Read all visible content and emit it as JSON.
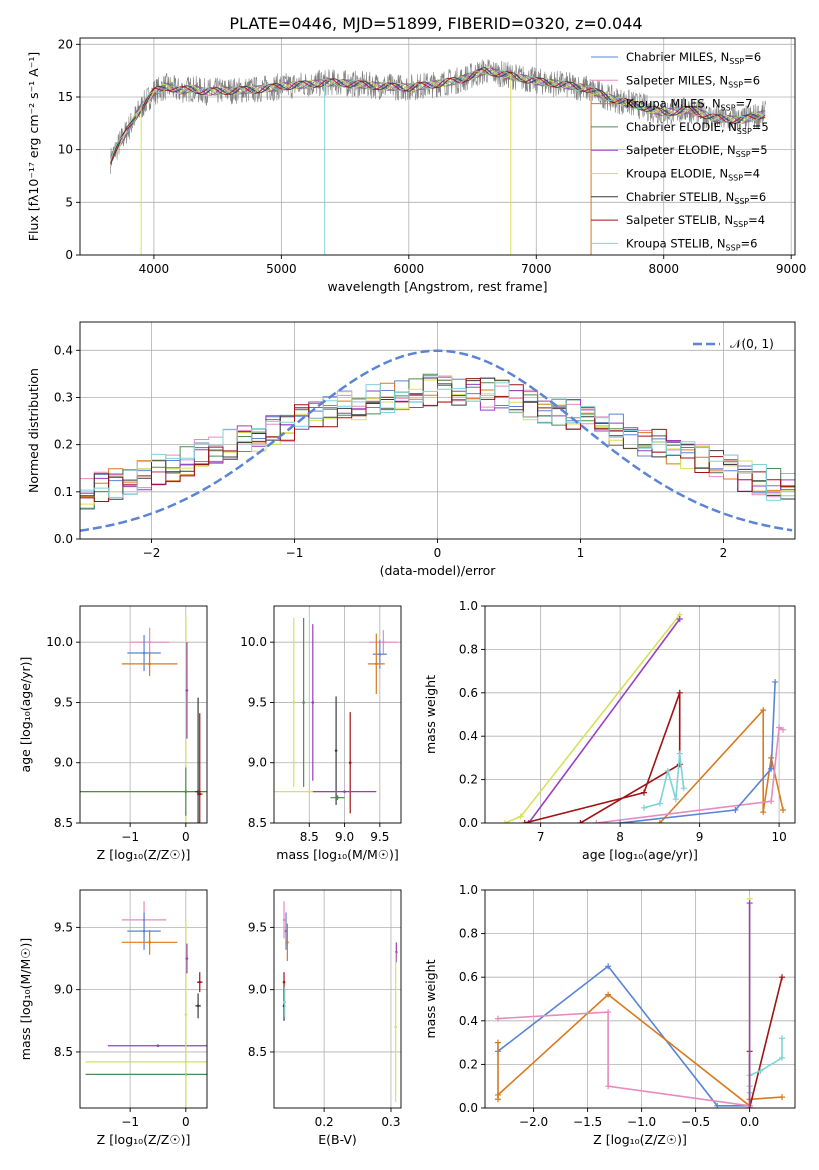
{
  "figure_title": "PLATE=0446, MJD=51899, FIBERID=0320, z=0.044",
  "legend_models": [
    {
      "name": "Chabrier MILES",
      "n": "6",
      "color": "#5b84d6"
    },
    {
      "name": "Salpeter MILES",
      "n": "6",
      "color": "#e78bbf"
    },
    {
      "name": "Kroupa MILES",
      "n": "7",
      "color": "#d97a1e"
    },
    {
      "name": "Chabrier ELODIE",
      "n": "5",
      "color": "#4f8a57"
    },
    {
      "name": "Salpeter ELODIE",
      "n": "5",
      "color": "#9a3dc4"
    },
    {
      "name": "Kroupa ELODIE",
      "n": "4",
      "color": "#d6e25a"
    },
    {
      "name": "Chabrier STELIB",
      "n": "6",
      "color": "#3a3a3a"
    },
    {
      "name": "Salpeter STELIB",
      "n": "4",
      "color": "#a11212"
    },
    {
      "name": "Kroupa STELIB",
      "n": "6",
      "color": "#7fd3d6"
    }
  ],
  "chart_data": [
    {
      "id": "spectrum",
      "type": "line",
      "xlabel": "wavelength [Angstrom, rest frame]",
      "ylabel": "Flux [fλ10⁻¹⁷ erg cm⁻² s⁻¹ A⁻¹]",
      "xlim": [
        3420,
        9030
      ],
      "ylim": [
        0,
        20.6
      ],
      "xticks": [
        4000,
        5000,
        6000,
        7000,
        8000,
        9000
      ],
      "yticks": [
        0,
        5,
        10,
        15,
        20
      ],
      "data_color": "#808080",
      "series": [
        {
          "x": [
            3660,
            3700,
            3800,
            3900,
            4000,
            4100,
            4200,
            4300,
            4400,
            4600,
            4800,
            5000,
            5200,
            5400,
            5600,
            5800,
            6000,
            6200,
            6400,
            6600,
            6800,
            7000,
            7200,
            7400,
            7600,
            7800,
            8000,
            8200,
            8400,
            8600,
            8800
          ],
          "y": [
            9.0,
            10.0,
            12.0,
            14.0,
            15.5,
            16.0,
            15.6,
            15.8,
            15.5,
            15.6,
            15.7,
            16.0,
            16.2,
            16.4,
            16.2,
            16.0,
            15.9,
            16.2,
            16.6,
            17.5,
            17.0,
            16.5,
            16.2,
            15.8,
            14.8,
            14.2,
            13.5,
            13.8,
            13.0,
            12.8,
            13.4
          ]
        }
      ]
    },
    {
      "id": "residuals",
      "type": "histogram",
      "xlabel": "(data-model)/error",
      "ylabel": "Normed distribution",
      "xlim": [
        -2.5,
        2.5
      ],
      "ylim": [
        0,
        0.46
      ],
      "xticks": [
        -2,
        -1,
        0,
        1,
        2
      ],
      "yticks": [
        0.0,
        0.1,
        0.2,
        0.3,
        0.4
      ],
      "legend": [
        {
          "name": "𝒩(0, 1)",
          "color": "#5b84d6"
        }
      ],
      "gaussian": {
        "mu": 0,
        "sigma": 1
      }
    },
    {
      "id": "age-vs-Z",
      "type": "scatter",
      "xlabel": "Z [log₁₀(Z/Z☉)]",
      "ylabel": "age  [log₁₀(age/yr)]",
      "xlim": [
        -1.9,
        0.38
      ],
      "ylim": [
        8.5,
        10.3
      ],
      "xticks": [
        -1,
        0
      ],
      "yticks": [
        8.5,
        9.0,
        9.5,
        10.0
      ],
      "points": [
        {
          "x": -0.65,
          "y": 10.0,
          "xerr": 0.35,
          "yerr": 0.12,
          "color": "#e78bbf"
        },
        {
          "x": -0.75,
          "y": 9.91,
          "xerr": 0.3,
          "yerr": 0.15,
          "color": "#5b84d6"
        },
        {
          "x": -0.65,
          "y": 9.82,
          "xerr": 0.5,
          "yerr": 0.1,
          "color": "#d97a1e"
        },
        {
          "x": 0.0,
          "y": 8.76,
          "xerr": 1.9,
          "yerr": 1.45,
          "color": "#d6e25a"
        },
        {
          "x": 0.0,
          "y": 8.76,
          "xerr": 1.9,
          "yerr": 0.2,
          "color": "#4f8a57"
        },
        {
          "x": 0.22,
          "y": 8.76,
          "xerr": 0.05,
          "yerr": 0.78,
          "color": "#3a3a3a"
        },
        {
          "x": 0.25,
          "y": 8.74,
          "xerr": 0.05,
          "yerr": 0.67,
          "color": "#a11212"
        },
        {
          "x": 0.02,
          "y": 9.6,
          "xerr": 0.02,
          "yerr": 0.4,
          "color": "#9a3dc4"
        }
      ]
    },
    {
      "id": "age-vs-mass",
      "type": "scatter",
      "xlabel": "mass [log₁₀(M/M☉)]",
      "ylabel": "",
      "xlim": [
        8.0,
        9.8
      ],
      "ylim": [
        8.5,
        10.3
      ],
      "xticks": [
        8.5,
        9.0,
        9.5
      ],
      "yticks": [
        8.5,
        9.0,
        9.5,
        10.0
      ],
      "points": [
        {
          "x": 8.28,
          "y": 9.5,
          "xerr": 0.0,
          "yerr": 0.7,
          "color": "#d6e25a"
        },
        {
          "x": 8.42,
          "y": 9.5,
          "xerr": 0.0,
          "yerr": 0.7,
          "color": "#4f8a57"
        },
        {
          "x": 8.55,
          "y": 9.5,
          "xerr": 0.0,
          "yerr": 0.65,
          "color": "#9a3dc4"
        },
        {
          "x": 8.88,
          "y": 9.1,
          "xerr": 0.0,
          "yerr": 0.45,
          "color": "#3a3a3a"
        },
        {
          "x": 9.08,
          "y": 9.0,
          "xerr": 0.0,
          "yerr": 0.42,
          "color": "#a11212"
        },
        {
          "x": 8.9,
          "y": 8.71,
          "xerr": 0.1,
          "yerr": 0.02,
          "color": "#4f8a57"
        },
        {
          "x": 8.5,
          "y": 8.76,
          "xerr": 0.5,
          "yerr": 0.0,
          "color": "#d6e25a"
        },
        {
          "x": 9.0,
          "y": 8.76,
          "xerr": 0.45,
          "yerr": 0.0,
          "color": "#9a3dc4"
        },
        {
          "x": 9.55,
          "y": 10.0,
          "xerr": 0.2,
          "yerr": 0.1,
          "color": "#e78bbf"
        },
        {
          "x": 9.5,
          "y": 9.9,
          "xerr": 0.1,
          "yerr": 0.12,
          "color": "#5b84d6"
        },
        {
          "x": 9.45,
          "y": 9.82,
          "xerr": 0.12,
          "yerr": 0.25,
          "color": "#d97a1e"
        }
      ]
    },
    {
      "id": "weight-vs-age",
      "type": "line",
      "xlabel": "age  [log₁₀(age/yr)]",
      "ylabel": "mass weight",
      "xlim": [
        6.3,
        10.2
      ],
      "ylim": [
        0,
        1.0
      ],
      "xticks": [
        7,
        8,
        9,
        10
      ],
      "yticks": [
        0.0,
        0.2,
        0.4,
        0.6,
        0.8,
        1.0
      ],
      "series": [
        {
          "color": "#d6e25a",
          "x": [
            6.55,
            6.75,
            8.75
          ],
          "y": [
            0.0,
            0.03,
            0.96
          ]
        },
        {
          "color": "#9a3dc4",
          "x": [
            6.85,
            8.75
          ],
          "y": [
            0.0,
            0.94
          ]
        },
        {
          "color": "#a11212",
          "x": [
            6.8,
            8.3,
            8.75,
            8.75,
            7.5
          ],
          "y": [
            0.0,
            0.14,
            0.6,
            0.27,
            0.0
          ]
        },
        {
          "color": "#7fd3d6",
          "x": [
            8.3,
            8.5,
            8.6,
            8.7,
            8.75,
            8.8
          ],
          "y": [
            0.07,
            0.09,
            0.24,
            0.11,
            0.32,
            0.16
          ]
        },
        {
          "color": "#d97a1e",
          "x": [
            8.5,
            9.8,
            9.8,
            9.9,
            10.05
          ],
          "y": [
            0.0,
            0.52,
            0.05,
            0.3,
            0.06
          ]
        },
        {
          "color": "#e78bbf",
          "x": [
            7.7,
            9.9,
            10.0,
            10.05
          ],
          "y": [
            0.0,
            0.1,
            0.44,
            0.43
          ]
        },
        {
          "color": "#5b84d6",
          "x": [
            8.0,
            9.45,
            9.9,
            9.95
          ],
          "y": [
            0.0,
            0.06,
            0.25,
            0.65
          ]
        }
      ]
    },
    {
      "id": "mass-vs-Z",
      "type": "scatter",
      "xlabel": "Z [log₁₀(Z/Z☉)]",
      "ylabel": "mass [log₁₀(M/M☉)]",
      "xlim": [
        -1.9,
        0.38
      ],
      "ylim": [
        8.05,
        9.8
      ],
      "xticks": [
        -1,
        0
      ],
      "yticks": [
        8.5,
        9.0,
        9.5
      ],
      "points": [
        {
          "x": -0.75,
          "y": 9.56,
          "xerr": 0.4,
          "yerr": 0.15,
          "color": "#e78bbf"
        },
        {
          "x": -0.75,
          "y": 9.47,
          "xerr": 0.3,
          "yerr": 0.15,
          "color": "#5b84d6"
        },
        {
          "x": -0.65,
          "y": 9.38,
          "xerr": 0.5,
          "yerr": 0.1,
          "color": "#d97a1e"
        },
        {
          "x": 0.0,
          "y": 8.42,
          "xerr": 1.8,
          "yerr": 0.0,
          "color": "#d6e25a"
        },
        {
          "x": -0.5,
          "y": 8.55,
          "xerr": 0.9,
          "yerr": 0.0,
          "color": "#9a3dc4"
        },
        {
          "x": 0.0,
          "y": 8.32,
          "xerr": 1.8,
          "yerr": 0.0,
          "color": "#4f8a57"
        },
        {
          "x": 0.0,
          "y": 8.8,
          "xerr": 0.02,
          "yerr": 0.75,
          "color": "#d6e25a"
        },
        {
          "x": 0.02,
          "y": 9.25,
          "xerr": 0.0,
          "yerr": 0.12,
          "color": "#9a3dc4"
        },
        {
          "x": 0.22,
          "y": 8.87,
          "xerr": 0.05,
          "yerr": 0.1,
          "color": "#3a3a3a"
        },
        {
          "x": 0.25,
          "y": 9.06,
          "xerr": 0.05,
          "yerr": 0.08,
          "color": "#a11212"
        }
      ]
    },
    {
      "id": "mass-vs-EBV",
      "type": "scatter",
      "xlabel": "E(B-V)",
      "ylabel": "",
      "xlim": [
        0.125,
        0.315
      ],
      "ylim": [
        8.05,
        9.8
      ],
      "xticks": [
        0.2,
        0.3
      ],
      "yticks": [
        8.5,
        9.0,
        9.5
      ],
      "points": [
        {
          "x": 0.14,
          "y": 9.56,
          "xerr": 0,
          "yerr": 0.15,
          "color": "#e78bbf"
        },
        {
          "x": 0.143,
          "y": 9.47,
          "xerr": 0,
          "yerr": 0.15,
          "color": "#5b84d6"
        },
        {
          "x": 0.145,
          "y": 9.38,
          "xerr": 0,
          "yerr": 0.15,
          "color": "#d97a1e"
        },
        {
          "x": 0.14,
          "y": 9.06,
          "xerr": 0,
          "yerr": 0.08,
          "color": "#a11212"
        },
        {
          "x": 0.14,
          "y": 8.87,
          "xerr": 0,
          "yerr": 0.12,
          "color": "#3a3a3a"
        },
        {
          "x": 0.141,
          "y": 8.9,
          "xerr": 0,
          "yerr": 0.12,
          "color": "#7fd3d6"
        },
        {
          "x": 0.308,
          "y": 9.3,
          "xerr": 0,
          "yerr": 0.08,
          "color": "#9a3dc4"
        },
        {
          "x": 0.307,
          "y": 8.7,
          "xerr": 0,
          "yerr": 0.6,
          "color": "#d6e25a"
        }
      ]
    },
    {
      "id": "weight-vs-Z",
      "type": "line",
      "xlabel": "Z [log₁₀(Z/Z☉)]",
      "ylabel": "mass weight",
      "xlim": [
        -2.45,
        0.42
      ],
      "ylim": [
        0,
        1.0
      ],
      "xticks": [
        -2.0,
        -1.5,
        -1.0,
        -0.5,
        0.0
      ],
      "yticks": [
        0.0,
        0.2,
        0.4,
        0.6,
        0.8,
        1.0
      ],
      "series": [
        {
          "color": "#5b84d6",
          "x": [
            -2.33,
            -1.31,
            -0.3,
            0.0
          ],
          "y": [
            0.26,
            0.65,
            0.01,
            0.01
          ]
        },
        {
          "color": "#d97a1e",
          "x": [
            -2.33,
            -2.33,
            -2.33,
            -1.31,
            0.0,
            0.0,
            0.3
          ],
          "y": [
            0.3,
            0.04,
            0.06,
            0.52,
            0.01,
            0.04,
            0.05
          ]
        },
        {
          "color": "#e78bbf",
          "x": [
            -2.33,
            -1.31,
            -1.31,
            0.0
          ],
          "y": [
            0.41,
            0.44,
            0.1,
            0.01
          ]
        },
        {
          "color": "#a11212",
          "x": [
            0.0,
            0.0,
            0.3
          ],
          "y": [
            0.26,
            0.0,
            0.6
          ]
        },
        {
          "color": "#7fd3d6",
          "x": [
            0.0,
            0.0,
            0.0,
            0.1,
            0.3,
            0.3
          ],
          "y": [
            0.07,
            0.1,
            0.15,
            0.17,
            0.23,
            0.32
          ]
        },
        {
          "color": "#d6e25a",
          "x": [
            0.0,
            0.0
          ],
          "y": [
            0.0,
            0.96
          ]
        },
        {
          "color": "#9a3dc4",
          "x": [
            0.0,
            0.0
          ],
          "y": [
            0.0,
            0.94
          ]
        }
      ]
    }
  ]
}
